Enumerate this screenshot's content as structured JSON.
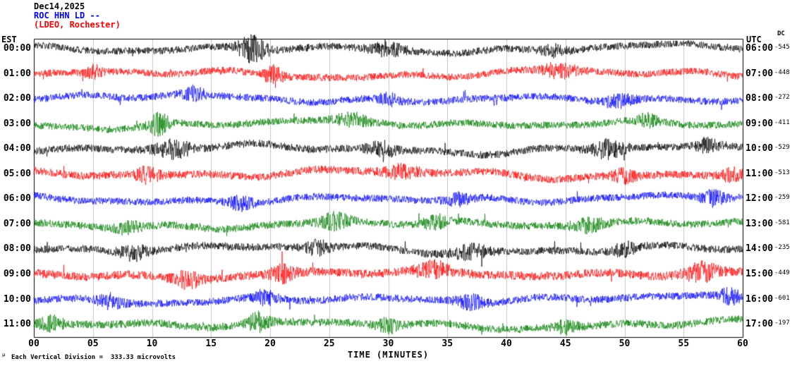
{
  "header": {
    "date": "Dec14,2025",
    "station": "ROC HHN LD --",
    "network": "(LDEO, Rochester)"
  },
  "axes": {
    "left_title": "EST",
    "right_title": "UTC",
    "dc_title": "DC",
    "x_title": "TIME (MINUTES)",
    "x_ticks": [
      "00",
      "05",
      "10",
      "15",
      "20",
      "25",
      "30",
      "35",
      "40",
      "45",
      "50",
      "55",
      "60"
    ]
  },
  "footer": {
    "mark": "µ",
    "note": "Each Vertical Division =  333.33 microvolts"
  },
  "colors": {
    "grid": "#c4c4c4",
    "frame": "#000000",
    "background": "#ffffff"
  },
  "chart_data": {
    "type": "line",
    "subtype": "helicorder-seismogram",
    "title": "ROC HHN LD -- (LDEO, Rochester) Dec14,2025",
    "xlabel": "TIME (MINUTES)",
    "x_range_minutes": [
      0,
      60
    ],
    "x_tick_step_minutes": 5,
    "vertical_division_microvolts": 333.33,
    "left_time_zone": "EST",
    "right_time_zone": "UTC",
    "grid": true,
    "rows": [
      {
        "est": "00:00",
        "utc": "06:00",
        "dc": "-545",
        "color": "#000000",
        "amp": 5.0,
        "bursts": [
          [
            18.5,
            1.2,
            3.2
          ],
          [
            30.0,
            1.5,
            1.5
          ],
          [
            44.0,
            1.0,
            1.3
          ]
        ]
      },
      {
        "est": "01:00",
        "utc": "07:00",
        "dc": "-448",
        "color": "#ff0000",
        "amp": 5.0,
        "bursts": [
          [
            5.0,
            0.7,
            1.6
          ],
          [
            20.3,
            0.7,
            2.6
          ],
          [
            44.5,
            1.5,
            1.7
          ]
        ]
      },
      {
        "est": "02:00",
        "utc": "08:00",
        "dc": "-272",
        "color": "#0000ff",
        "amp": 5.0,
        "bursts": [
          [
            13.5,
            1.0,
            1.5
          ],
          [
            30.0,
            1.0,
            1.3
          ],
          [
            49.5,
            1.2,
            1.7
          ]
        ]
      },
      {
        "est": "03:00",
        "utc": "09:00",
        "dc": "-411",
        "color": "#007c00",
        "amp": 5.0,
        "bursts": [
          [
            10.6,
            0.8,
            2.8
          ],
          [
            27.0,
            1.5,
            1.4
          ],
          [
            52.0,
            1.0,
            1.4
          ]
        ]
      },
      {
        "est": "04:00",
        "utc": "10:00",
        "dc": "-529",
        "color": "#000000",
        "amp": 5.3,
        "bursts": [
          [
            11.8,
            1.5,
            2.0
          ],
          [
            29.5,
            1.2,
            1.7
          ],
          [
            48.7,
            1.3,
            2.2
          ],
          [
            57.0,
            1.0,
            1.5
          ]
        ]
      },
      {
        "est": "05:00",
        "utc": "11:00",
        "dc": "-513",
        "color": "#ff0000",
        "amp": 5.5,
        "bursts": [
          [
            9.7,
            1.0,
            1.8
          ],
          [
            31.0,
            1.5,
            1.4
          ],
          [
            50.0,
            1.0,
            1.4
          ],
          [
            59.0,
            0.8,
            1.5
          ]
        ]
      },
      {
        "est": "06:00",
        "utc": "12:00",
        "dc": "-259",
        "color": "#0000ff",
        "amp": 5.0,
        "bursts": [
          [
            17.5,
            1.0,
            1.6
          ],
          [
            36.0,
            1.2,
            1.4
          ],
          [
            57.5,
            1.0,
            1.8
          ]
        ]
      },
      {
        "est": "07:00",
        "utc": "13:00",
        "dc": "-581",
        "color": "#007c00",
        "amp": 5.3,
        "bursts": [
          [
            8.0,
            1.0,
            1.4
          ],
          [
            25.5,
            1.2,
            1.8
          ],
          [
            34.0,
            1.0,
            1.5
          ],
          [
            47.0,
            1.5,
            1.4
          ]
        ]
      },
      {
        "est": "08:00",
        "utc": "14:00",
        "dc": "-235",
        "color": "#000000",
        "amp": 5.3,
        "bursts": [
          [
            8.5,
            1.2,
            1.6
          ],
          [
            24.0,
            1.0,
            1.5
          ],
          [
            37.0,
            1.5,
            1.6
          ],
          [
            50.0,
            1.0,
            1.5
          ]
        ]
      },
      {
        "est": "09:00",
        "utc": "15:00",
        "dc": "-449",
        "color": "#ff0000",
        "amp": 6.2,
        "bursts": [
          [
            13.0,
            1.0,
            1.6
          ],
          [
            21.0,
            1.0,
            1.5
          ],
          [
            34.0,
            1.3,
            1.5
          ],
          [
            56.5,
            1.3,
            1.8
          ]
        ]
      },
      {
        "est": "10:00",
        "utc": "16:00",
        "dc": "-601",
        "color": "#0000ff",
        "amp": 5.3,
        "bursts": [
          [
            6.5,
            1.0,
            1.7
          ],
          [
            19.5,
            1.0,
            1.6
          ],
          [
            37.0,
            1.2,
            1.5
          ],
          [
            59.0,
            0.8,
            1.8
          ]
        ]
      },
      {
        "est": "11:00",
        "utc": "17:00",
        "dc": "-197",
        "color": "#007c00",
        "amp": 5.5,
        "bursts": [
          [
            1.5,
            1.0,
            1.5
          ],
          [
            19.0,
            0.9,
            2.0
          ],
          [
            30.0,
            1.0,
            1.5
          ],
          [
            45.0,
            1.0,
            1.3
          ]
        ]
      }
    ]
  }
}
